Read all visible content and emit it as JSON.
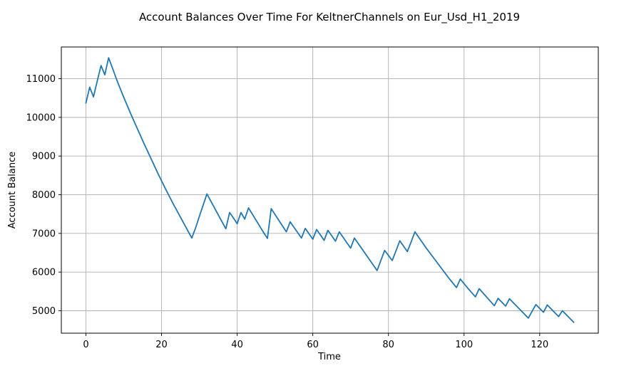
{
  "chart_data": {
    "type": "line",
    "title": "Account Balances Over Time For KeltnerChannels on Eur_Usd_H1_2019",
    "xlabel": "Time",
    "ylabel": "Account Balance",
    "xlim": [
      -6.5,
      135.5
    ],
    "ylim": [
      4420,
      11820
    ],
    "x_ticks": [
      0,
      20,
      40,
      60,
      80,
      100,
      120
    ],
    "y_ticks": [
      5000,
      6000,
      7000,
      8000,
      9000,
      10000,
      11000
    ],
    "grid": true,
    "legend": "none",
    "series": [
      {
        "color": "#1f77b4",
        "x": [
          0,
          1,
          2,
          3,
          4,
          5,
          6,
          7,
          8,
          9,
          10,
          11,
          12,
          13,
          14,
          15,
          16,
          17,
          18,
          19,
          20,
          21,
          22,
          23,
          24,
          25,
          26,
          27,
          28,
          29,
          30,
          31,
          32,
          33,
          34,
          35,
          36,
          37,
          38,
          39,
          40,
          41,
          42,
          43,
          44,
          45,
          46,
          47,
          48,
          49,
          50,
          51,
          52,
          53,
          54,
          55,
          56,
          57,
          58,
          59,
          60,
          61,
          62,
          63,
          64,
          65,
          66,
          67,
          68,
          69,
          70,
          71,
          72,
          73,
          74,
          75,
          76,
          77,
          78,
          79,
          80,
          81,
          82,
          83,
          84,
          85,
          86,
          87,
          88,
          89,
          90,
          91,
          92,
          93,
          94,
          95,
          96,
          97,
          98,
          99,
          100,
          101,
          102,
          103,
          104,
          105,
          106,
          107,
          108,
          109,
          110,
          111,
          112,
          113,
          114,
          115,
          116,
          117,
          118,
          119,
          120,
          121,
          122,
          123,
          124,
          125,
          126,
          127,
          128,
          129
        ],
        "y": [
          10370,
          10780,
          10530,
          10940,
          11340,
          11100,
          11540,
          11280,
          11010,
          10760,
          10520,
          10290,
          10060,
          9840,
          9620,
          9400,
          9190,
          8980,
          8770,
          8560,
          8360,
          8160,
          7970,
          7780,
          7600,
          7420,
          7240,
          7060,
          6880,
          7140,
          7440,
          7730,
          8020,
          7840,
          7660,
          7480,
          7300,
          7120,
          7540,
          7400,
          7250,
          7540,
          7370,
          7660,
          7500,
          7340,
          7180,
          7020,
          6870,
          7640,
          7490,
          7340,
          7190,
          7040,
          7300,
          7160,
          7020,
          6880,
          7130,
          6990,
          6850,
          7100,
          6960,
          6820,
          7080,
          6940,
          6800,
          7040,
          6900,
          6760,
          6620,
          6880,
          6740,
          6600,
          6460,
          6320,
          6180,
          6040,
          6300,
          6560,
          6430,
          6300,
          6550,
          6810,
          6670,
          6530,
          6780,
          7040,
          6900,
          6760,
          6620,
          6490,
          6360,
          6230,
          6100,
          5970,
          5840,
          5720,
          5600,
          5820,
          5700,
          5580,
          5470,
          5360,
          5570,
          5460,
          5350,
          5240,
          5130,
          5320,
          5220,
          5120,
          5310,
          5210,
          5110,
          5010,
          4910,
          4810,
          4990,
          5160,
          5060,
          4960,
          5150,
          5050,
          4950,
          4850,
          5000,
          4900,
          4800,
          4700
        ]
      }
    ]
  }
}
